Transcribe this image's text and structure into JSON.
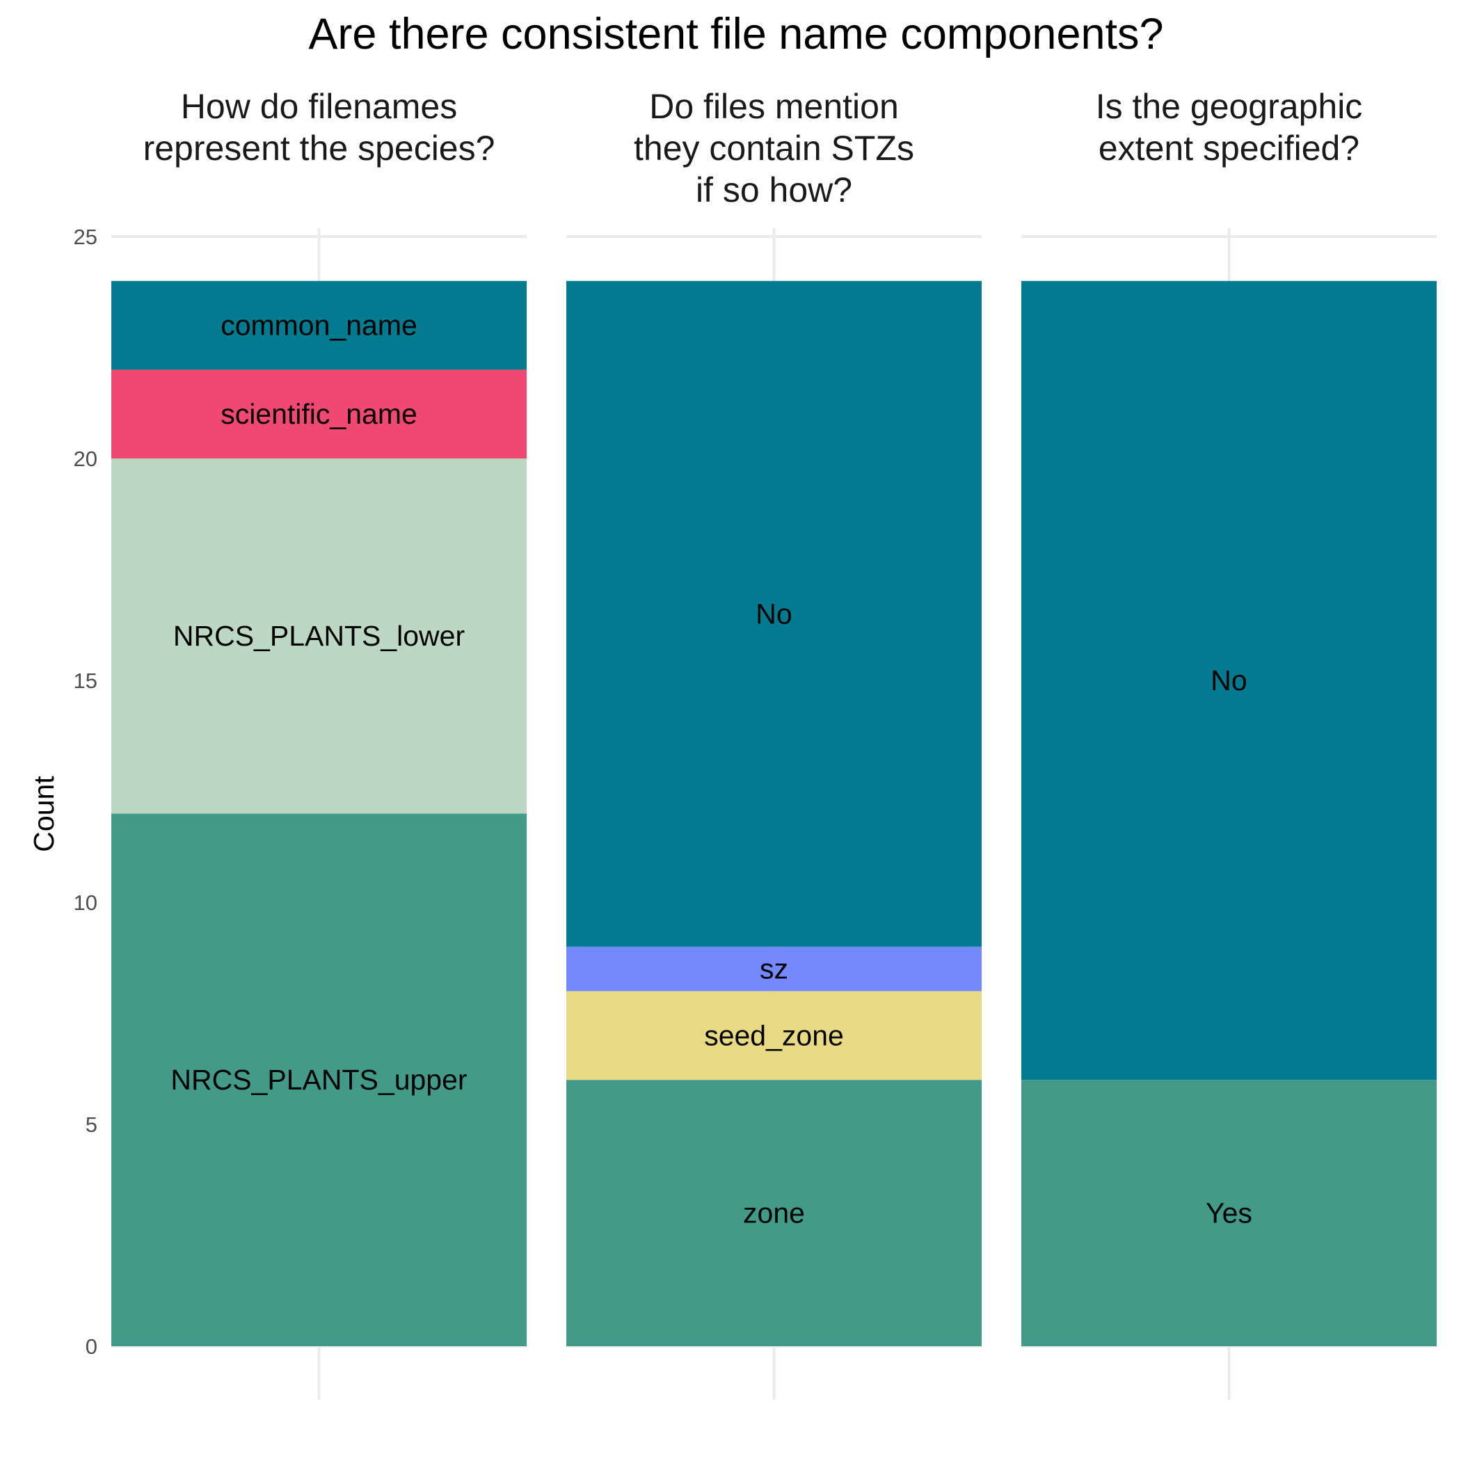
{
  "chart_data": {
    "type": "bar",
    "stacked": true,
    "title": "Are there consistent file name components?",
    "ylabel": "Count",
    "xlabel": "",
    "ylim": [
      0,
      25
    ],
    "yticks": [
      0,
      5,
      10,
      15,
      20,
      25
    ],
    "grid": true,
    "legend": "none",
    "panels": [
      {
        "strip": [
          "How do filenames",
          "represent the species?"
        ],
        "segments": [
          {
            "label": "NRCS_PLANTS_upper",
            "value": 12,
            "color": "#449a88"
          },
          {
            "label": "NRCS_PLANTS_lower",
            "value": 8,
            "color": "#bcd8c2"
          },
          {
            "label": "scientific_name",
            "value": 2,
            "color": "#ef4872"
          },
          {
            "label": "common_name",
            "value": 2,
            "color": "#027a90"
          }
        ]
      },
      {
        "strip": [
          "Do files mention",
          "they contain STZs",
          "if so how?"
        ],
        "segments": [
          {
            "label": "zone",
            "value": 6,
            "color": "#449a88"
          },
          {
            "label": "seed_zone",
            "value": 2,
            "color": "#e8d985"
          },
          {
            "label": "sz",
            "value": 1,
            "color": "#7389fd"
          },
          {
            "label": "No",
            "value": 15,
            "color": "#027a90"
          }
        ]
      },
      {
        "strip": [
          "Is the geographic",
          "extent specified?"
        ],
        "segments": [
          {
            "label": "Yes",
            "value": 6,
            "color": "#449a88"
          },
          {
            "label": "No",
            "value": 18,
            "color": "#027a90"
          }
        ]
      }
    ]
  }
}
